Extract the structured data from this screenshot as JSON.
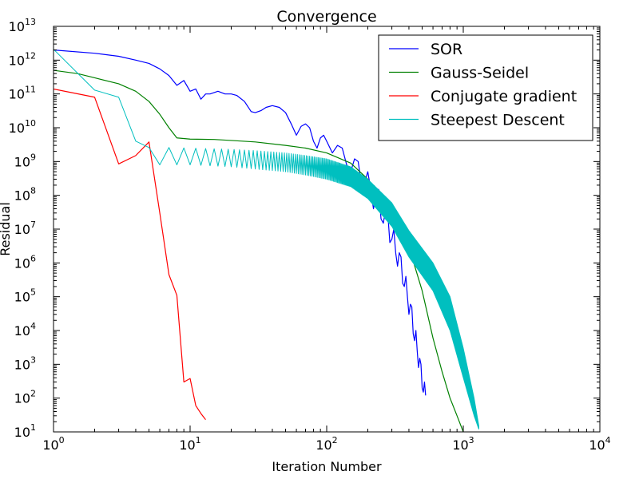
{
  "chart_data": {
    "type": "line",
    "title": "Convergence",
    "xlabel": "Iteration Number",
    "ylabel": "Residual",
    "xscale": "log",
    "yscale": "log",
    "xlim": [
      1,
      10000
    ],
    "ylim": [
      10,
      10000000000000.0
    ],
    "x_ticks": [
      {
        "base": "10",
        "exp": "0"
      },
      {
        "base": "10",
        "exp": "1"
      },
      {
        "base": "10",
        "exp": "2"
      },
      {
        "base": "10",
        "exp": "3"
      },
      {
        "base": "10",
        "exp": "4"
      }
    ],
    "y_ticks": [
      {
        "base": "10",
        "exp": "1"
      },
      {
        "base": "10",
        "exp": "2"
      },
      {
        "base": "10",
        "exp": "3"
      },
      {
        "base": "10",
        "exp": "4"
      },
      {
        "base": "10",
        "exp": "5"
      },
      {
        "base": "10",
        "exp": "6"
      },
      {
        "base": "10",
        "exp": "7"
      },
      {
        "base": "10",
        "exp": "8"
      },
      {
        "base": "10",
        "exp": "9"
      },
      {
        "base": "10",
        "exp": "10"
      },
      {
        "base": "10",
        "exp": "11"
      },
      {
        "base": "10",
        "exp": "12"
      },
      {
        "base": "10",
        "exp": "13"
      }
    ],
    "grid": false,
    "legend_position": "top-right",
    "series": [
      {
        "name": "SOR",
        "color": "#0000ff",
        "points": [
          [
            1,
            2000000000000.0
          ],
          [
            2,
            1600000000000.0
          ],
          [
            3,
            1300000000000.0
          ],
          [
            4,
            1000000000000.0
          ],
          [
            5,
            800000000000.0
          ],
          [
            6,
            550000000000.0
          ],
          [
            7,
            350000000000.0
          ],
          [
            8,
            180000000000.0
          ],
          [
            9,
            250000000000.0
          ],
          [
            10,
            120000000000.0
          ],
          [
            11,
            140000000000.0
          ],
          [
            12,
            70000000000.0
          ],
          [
            13,
            100000000000.0
          ],
          [
            14,
            100000000000.0
          ],
          [
            16,
            120000000000.0
          ],
          [
            18,
            100000000000.0
          ],
          [
            20,
            100000000000.0
          ],
          [
            22,
            90000000000.0
          ],
          [
            25,
            60000000000.0
          ],
          [
            28,
            30000000000.0
          ],
          [
            30,
            28000000000.0
          ],
          [
            33,
            32000000000.0
          ],
          [
            36,
            40000000000.0
          ],
          [
            40,
            45000000000.0
          ],
          [
            45,
            40000000000.0
          ],
          [
            50,
            28000000000.0
          ],
          [
            55,
            13000000000.0
          ],
          [
            60,
            6000000000.0
          ],
          [
            65,
            11000000000.0
          ],
          [
            70,
            13000000000.0
          ],
          [
            75,
            10000000000.0
          ],
          [
            80,
            4000000000.0
          ],
          [
            85,
            2500000000.0
          ],
          [
            90,
            5000000000.0
          ],
          [
            95,
            6000000000.0
          ],
          [
            100,
            4000000000.0
          ],
          [
            110,
            1800000000.0
          ],
          [
            120,
            3000000000.0
          ],
          [
            130,
            2500000000.0
          ],
          [
            140,
            800000000.0
          ],
          [
            150,
            500000000.0
          ],
          [
            160,
            1200000000.0
          ],
          [
            170,
            1000000000.0
          ],
          [
            180,
            200000000.0
          ],
          [
            190,
            250000000.0
          ],
          [
            200,
            500000000.0
          ],
          [
            210,
            150000000.0
          ],
          [
            220,
            40000000.0
          ],
          [
            230,
            100000000.0
          ],
          [
            240,
            150000000.0
          ],
          [
            250,
            20000000.0
          ],
          [
            260,
            15000000.0
          ],
          [
            270,
            40000000.0
          ],
          [
            280,
            30000000.0
          ],
          [
            290,
            4000000.0
          ],
          [
            300,
            5000000.0
          ],
          [
            310,
            10000000.0
          ],
          [
            320,
            2000000.0
          ],
          [
            330,
            800000.0
          ],
          [
            340,
            2000000.0
          ],
          [
            350,
            1500000.0
          ],
          [
            360,
            250000.0
          ],
          [
            370,
            200000.0
          ],
          [
            380,
            400000.0
          ],
          [
            390,
            100000.0
          ],
          [
            400,
            30000.0
          ],
          [
            410,
            60000.0
          ],
          [
            420,
            50000.0
          ],
          [
            430,
            8000.0
          ],
          [
            440,
            5000.0
          ],
          [
            450,
            10000.0
          ],
          [
            460,
            2500.0
          ],
          [
            470,
            800.0
          ],
          [
            480,
            1500.0
          ],
          [
            490,
            1000.0
          ],
          [
            500,
            200.0
          ],
          [
            510,
            150.0
          ],
          [
            520,
            300.0
          ],
          [
            530,
            120.0
          ]
        ]
      },
      {
        "name": "Gauss-Seidel",
        "color": "#008000",
        "points": [
          [
            1,
            500000000000.0
          ],
          [
            1.5,
            400000000000.0
          ],
          [
            2,
            300000000000.0
          ],
          [
            3,
            200000000000.0
          ],
          [
            4,
            120000000000.0
          ],
          [
            5,
            60000000000.0
          ],
          [
            6,
            25000000000.0
          ],
          [
            7,
            10000000000.0
          ],
          [
            8,
            5000000000.0
          ],
          [
            10,
            4600000000.0
          ],
          [
            15,
            4500000000.0
          ],
          [
            20,
            4200000000.0
          ],
          [
            30,
            3800000000.0
          ],
          [
            50,
            3000000000.0
          ],
          [
            70,
            2500000000.0
          ],
          [
            100,
            1800000000.0
          ],
          [
            150,
            900000000.0
          ],
          [
            200,
            300000000.0
          ],
          [
            300,
            40000000.0
          ],
          [
            400,
            3000000.0
          ],
          [
            500,
            150000.0
          ],
          [
            600,
            6000.0
          ],
          [
            700,
            600.0
          ],
          [
            800,
            100.0
          ],
          [
            900,
            30.0
          ],
          [
            1000,
            10.0
          ]
        ]
      },
      {
        "name": "Conjugate gradient",
        "color": "#ff0000",
        "points": [
          [
            1,
            140000000000.0
          ],
          [
            2,
            80000000000.0
          ],
          [
            3,
            850000000.0
          ],
          [
            4,
            1500000000.0
          ],
          [
            5,
            3800000000.0
          ],
          [
            6,
            30000000.0
          ],
          [
            7,
            450000.0
          ],
          [
            8,
            110000.0
          ],
          [
            9,
            300.0
          ],
          [
            10,
            380.0
          ],
          [
            11,
            60.0
          ],
          [
            12,
            35.0
          ],
          [
            13,
            23.0
          ]
        ]
      },
      {
        "name": "Steepest Descent",
        "color": "#00bfbf",
        "zigzag": true,
        "x_max": 1300,
        "amplitude_decades": 0.25,
        "upper": [
          [
            1,
            2100000000000.0
          ],
          [
            2,
            130000000000.0
          ],
          [
            3,
            80000000000.0
          ],
          [
            4,
            4000000000.0
          ],
          [
            5,
            2600000000.0
          ],
          [
            7,
            2600000000.0
          ],
          [
            10,
            2500000000.0
          ],
          [
            20,
            2300000000.0
          ],
          [
            30,
            2100000000.0
          ],
          [
            50,
            1800000000.0
          ],
          [
            70,
            1500000000.0
          ],
          [
            100,
            1200000000.0
          ],
          [
            150,
            700000000.0
          ],
          [
            200,
            300000000.0
          ],
          [
            300,
            60000000.0
          ],
          [
            400,
            9000000.0
          ],
          [
            600,
            1000000.0
          ],
          [
            800,
            100000.0
          ],
          [
            1000,
            3000.0
          ],
          [
            1200,
            100.0
          ],
          [
            1300,
            15.0
          ]
        ],
        "lower": [
          [
            1,
            2100000000000.0
          ],
          [
            2,
            130000000000.0
          ],
          [
            3,
            80000000000.0
          ],
          [
            4,
            4000000000.0
          ],
          [
            5,
            2600000000.0
          ],
          [
            6,
            800000000.0
          ],
          [
            7,
            800000000.0
          ],
          [
            10,
            800000000.0
          ],
          [
            20,
            700000000.0
          ],
          [
            30,
            600000000.0
          ],
          [
            50,
            500000000.0
          ],
          [
            70,
            400000000.0
          ],
          [
            100,
            300000000.0
          ],
          [
            150,
            180000000.0
          ],
          [
            200,
            80000000.0
          ],
          [
            300,
            12000000.0
          ],
          [
            400,
            1500000.0
          ],
          [
            600,
            150000.0
          ],
          [
            800,
            10000.0
          ],
          [
            1000,
            400.0
          ],
          [
            1200,
            30.0
          ],
          [
            1300,
            12.0
          ]
        ]
      }
    ]
  }
}
